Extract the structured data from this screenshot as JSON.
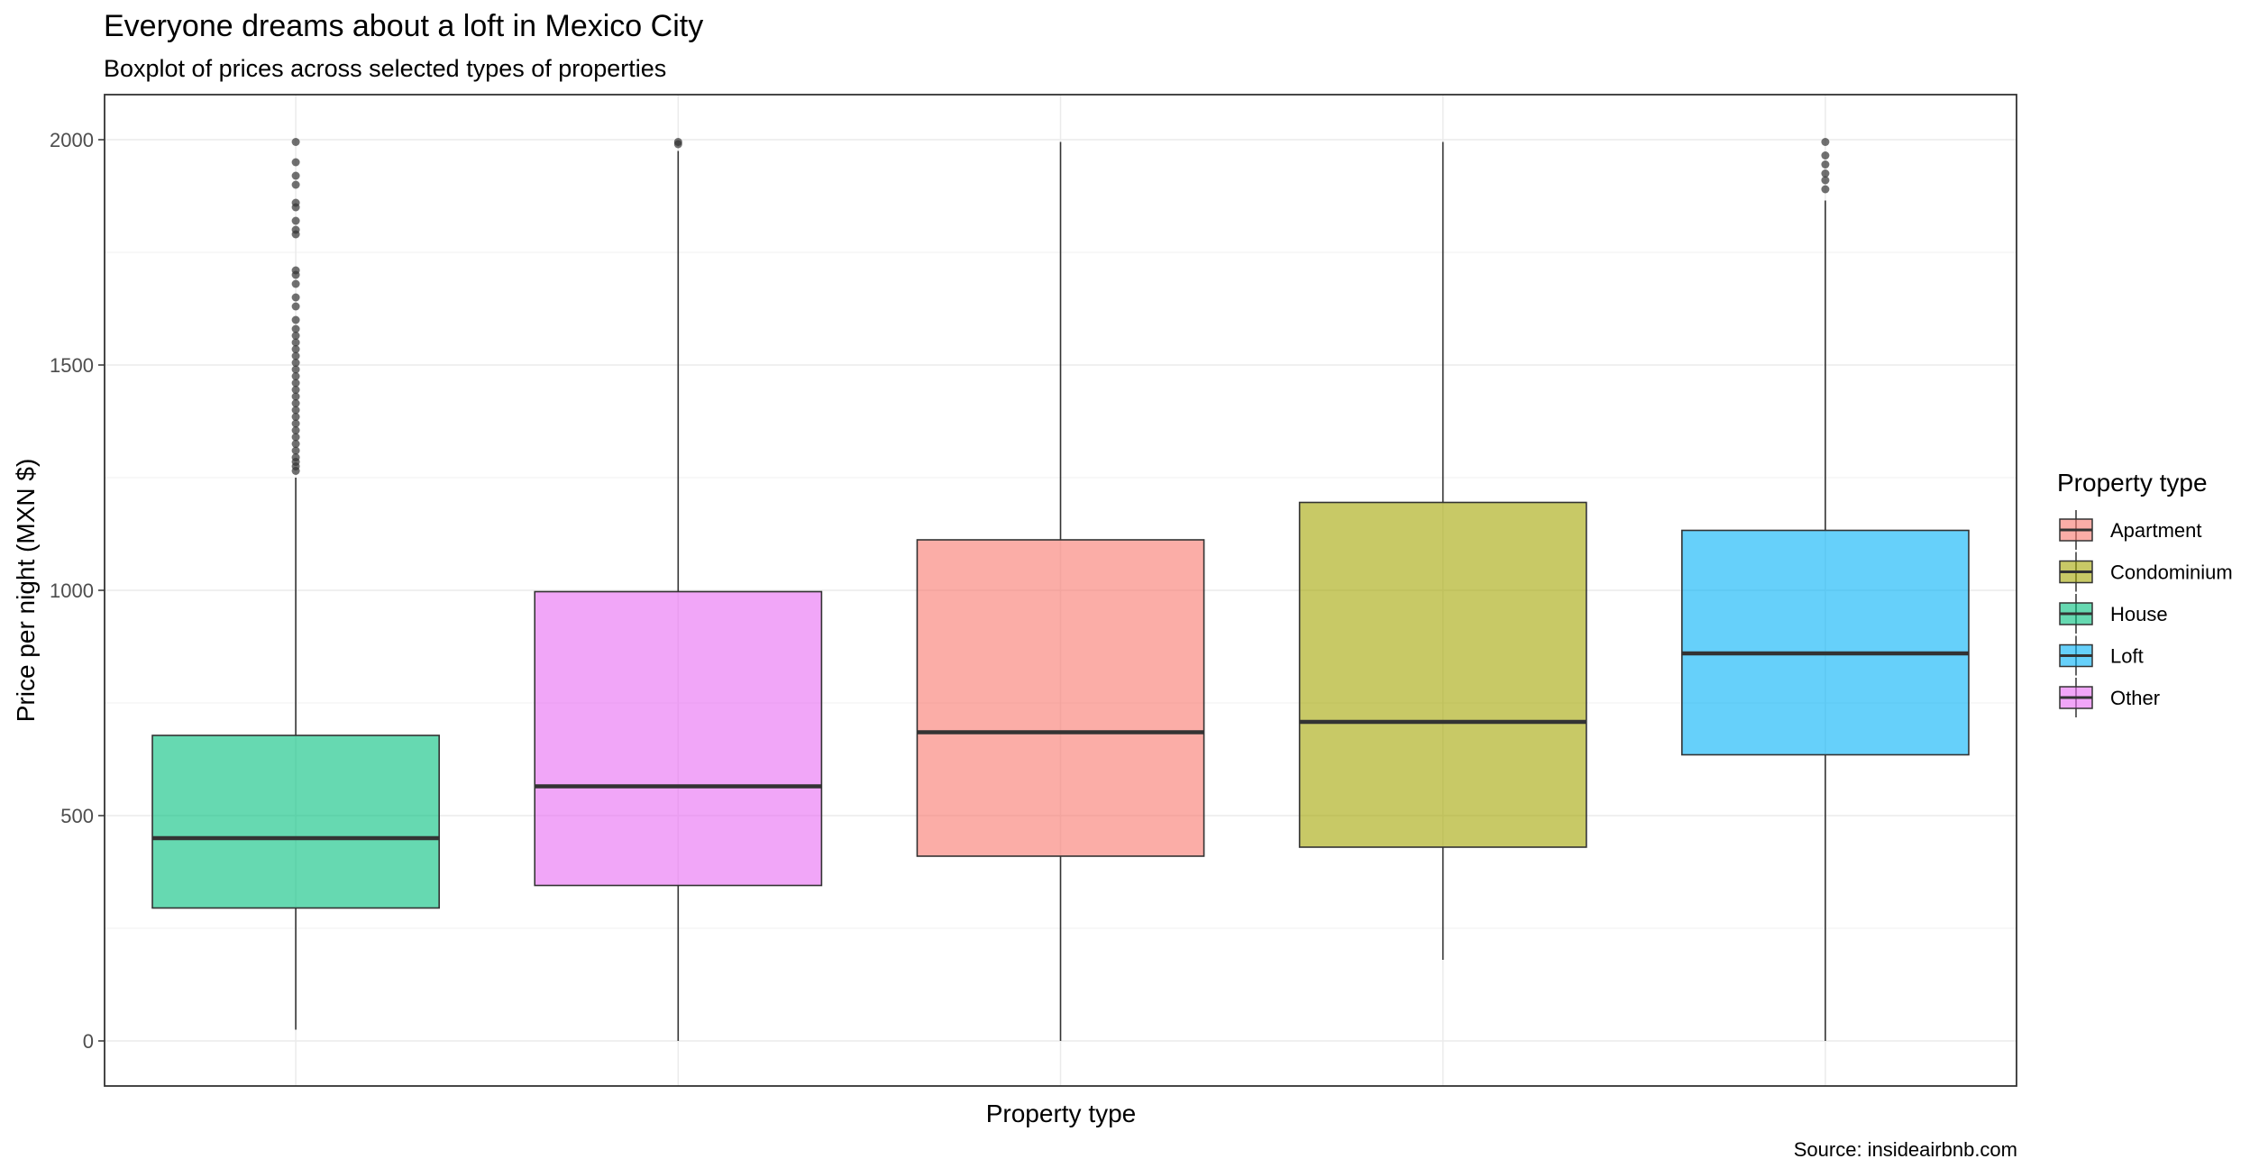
{
  "chart_data": {
    "type": "boxplot",
    "title": "Everyone dreams about a loft in Mexico City",
    "subtitle": "Boxplot of prices across selected types of properties",
    "xlabel": "Property type",
    "ylabel": "Price per night (MXN $)",
    "caption": "Source: insideairbnb.com",
    "ylim": [
      -100,
      2100
    ],
    "yticks": [
      0,
      500,
      1000,
      1500,
      2000
    ],
    "grid": true,
    "legend": {
      "title": "Property type",
      "position": "right",
      "entries": [
        {
          "label": "Apartment",
          "color": "#F8766D"
        },
        {
          "label": "Condominium",
          "color": "#A3A500"
        },
        {
          "label": "House",
          "color": "#00BF7D"
        },
        {
          "label": "Loft",
          "color": "#00B0F6"
        },
        {
          "label": "Other",
          "color": "#E76BF3"
        }
      ]
    },
    "boxes": [
      {
        "category": "House",
        "color": "#00BF7D",
        "whisker_low": 25,
        "q1": 295,
        "median": 450,
        "q3": 678,
        "whisker_high": 1250,
        "outliers": [
          1265,
          1275,
          1285,
          1295,
          1310,
          1325,
          1340,
          1355,
          1370,
          1385,
          1400,
          1415,
          1430,
          1445,
          1460,
          1475,
          1490,
          1505,
          1520,
          1535,
          1550,
          1565,
          1580,
          1600,
          1630,
          1650,
          1680,
          1700,
          1710,
          1790,
          1800,
          1820,
          1850,
          1860,
          1900,
          1920,
          1950,
          1995
        ]
      },
      {
        "category": "Other",
        "color": "#E76BF3",
        "whisker_low": 0,
        "q1": 345,
        "median": 565,
        "q3": 997,
        "whisker_high": 1975,
        "outliers": [
          1990,
          1995
        ]
      },
      {
        "category": "Apartment",
        "color": "#F8766D",
        "whisker_low": 0,
        "q1": 410,
        "median": 685,
        "q3": 1112,
        "whisker_high": 1995,
        "outliers": []
      },
      {
        "category": "Condominium",
        "color": "#A3A500",
        "whisker_low": 180,
        "q1": 430,
        "median": 708,
        "q3": 1195,
        "whisker_high": 1995,
        "outliers": []
      },
      {
        "category": "Loft",
        "color": "#00B0F6",
        "whisker_low": 0,
        "q1": 635,
        "median": 860,
        "q3": 1133,
        "whisker_high": 1865,
        "outliers": [
          1890,
          1910,
          1925,
          1945,
          1965,
          1995
        ]
      }
    ]
  }
}
